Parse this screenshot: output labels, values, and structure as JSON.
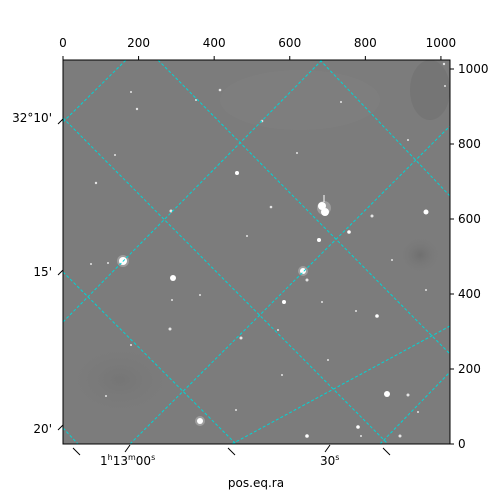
{
  "figure": {
    "xlabel": "pos.eq.ra",
    "pixel_axes": {
      "x_ticks": [
        "0",
        "200",
        "400",
        "600",
        "800",
        "1000"
      ],
      "y_ticks": [
        "0",
        "200",
        "400",
        "600",
        "800",
        "1000"
      ]
    },
    "wcs_axes": {
      "ra_ticks": [
        {
          "hms": "1",
          "h": "h",
          "mm": "13",
          "m": "m",
          "ss": "00",
          "s": "s"
        },
        {
          "text": "30",
          "s": "s"
        }
      ],
      "dec_ticks": [
        "32°10'",
        "15'",
        "20'"
      ]
    },
    "colors": {
      "image_background": "#7c7c7c",
      "grid": "#00d5d5",
      "stars": "#ffffff"
    }
  }
}
